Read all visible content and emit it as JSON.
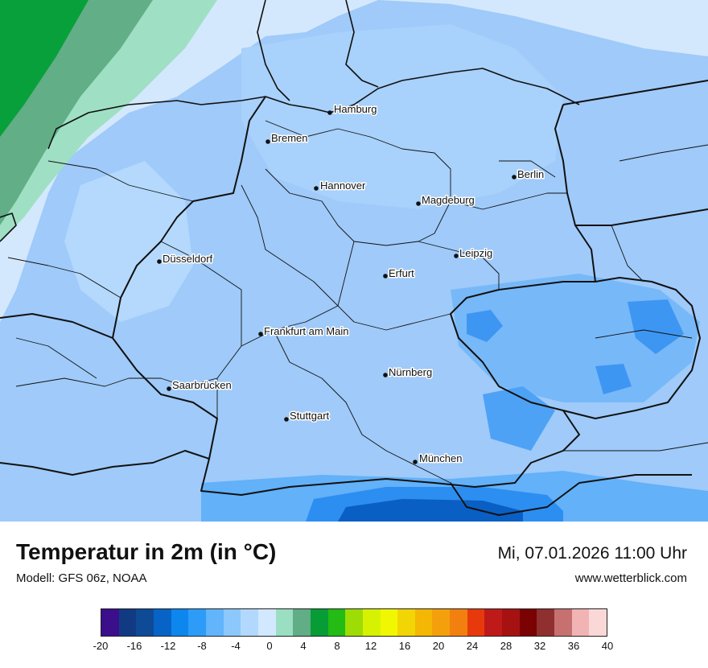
{
  "map": {
    "title": "Temperatur in 2m (in °C)",
    "model": "Modell: GFS 06z, NOAA",
    "datetime": "Mi, 07.01.2026 11:00 Uhr",
    "website": "www.wetterblick.com",
    "cities": [
      "Hamburg",
      "Bremen",
      "Berlin",
      "Hannover",
      "Magdeburg",
      "Düsseldorf",
      "Leipzig",
      "Erfurt",
      "Frankfurt am Main",
      "Nürnberg",
      "Saarbrücken",
      "Stuttgart",
      "München"
    ]
  },
  "legend": {
    "ticks": [
      "-20",
      "-16",
      "-12",
      "-8",
      "-4",
      "0",
      "4",
      "8",
      "12",
      "16",
      "20",
      "24",
      "28",
      "32",
      "36",
      "40"
    ],
    "colors": [
      "#3b0e8c",
      "#123a82",
      "#0f4a96",
      "#0863c7",
      "#0d86ee",
      "#2c9cf8",
      "#62b4fb",
      "#8cc8fc",
      "#b2d9fd",
      "#d2e8fe",
      "#9adfc2",
      "#60ad86",
      "#079c35",
      "#23bb14",
      "#9ddd05",
      "#d6f202",
      "#f1f701",
      "#f2d504",
      "#f4b703",
      "#f4a00d",
      "#f2800f",
      "#e8390c",
      "#be1a1a",
      "#a61212",
      "#7a0202",
      "#8f2f2f",
      "#c77070",
      "#f1b3b3",
      "#fbd8d8"
    ]
  }
}
